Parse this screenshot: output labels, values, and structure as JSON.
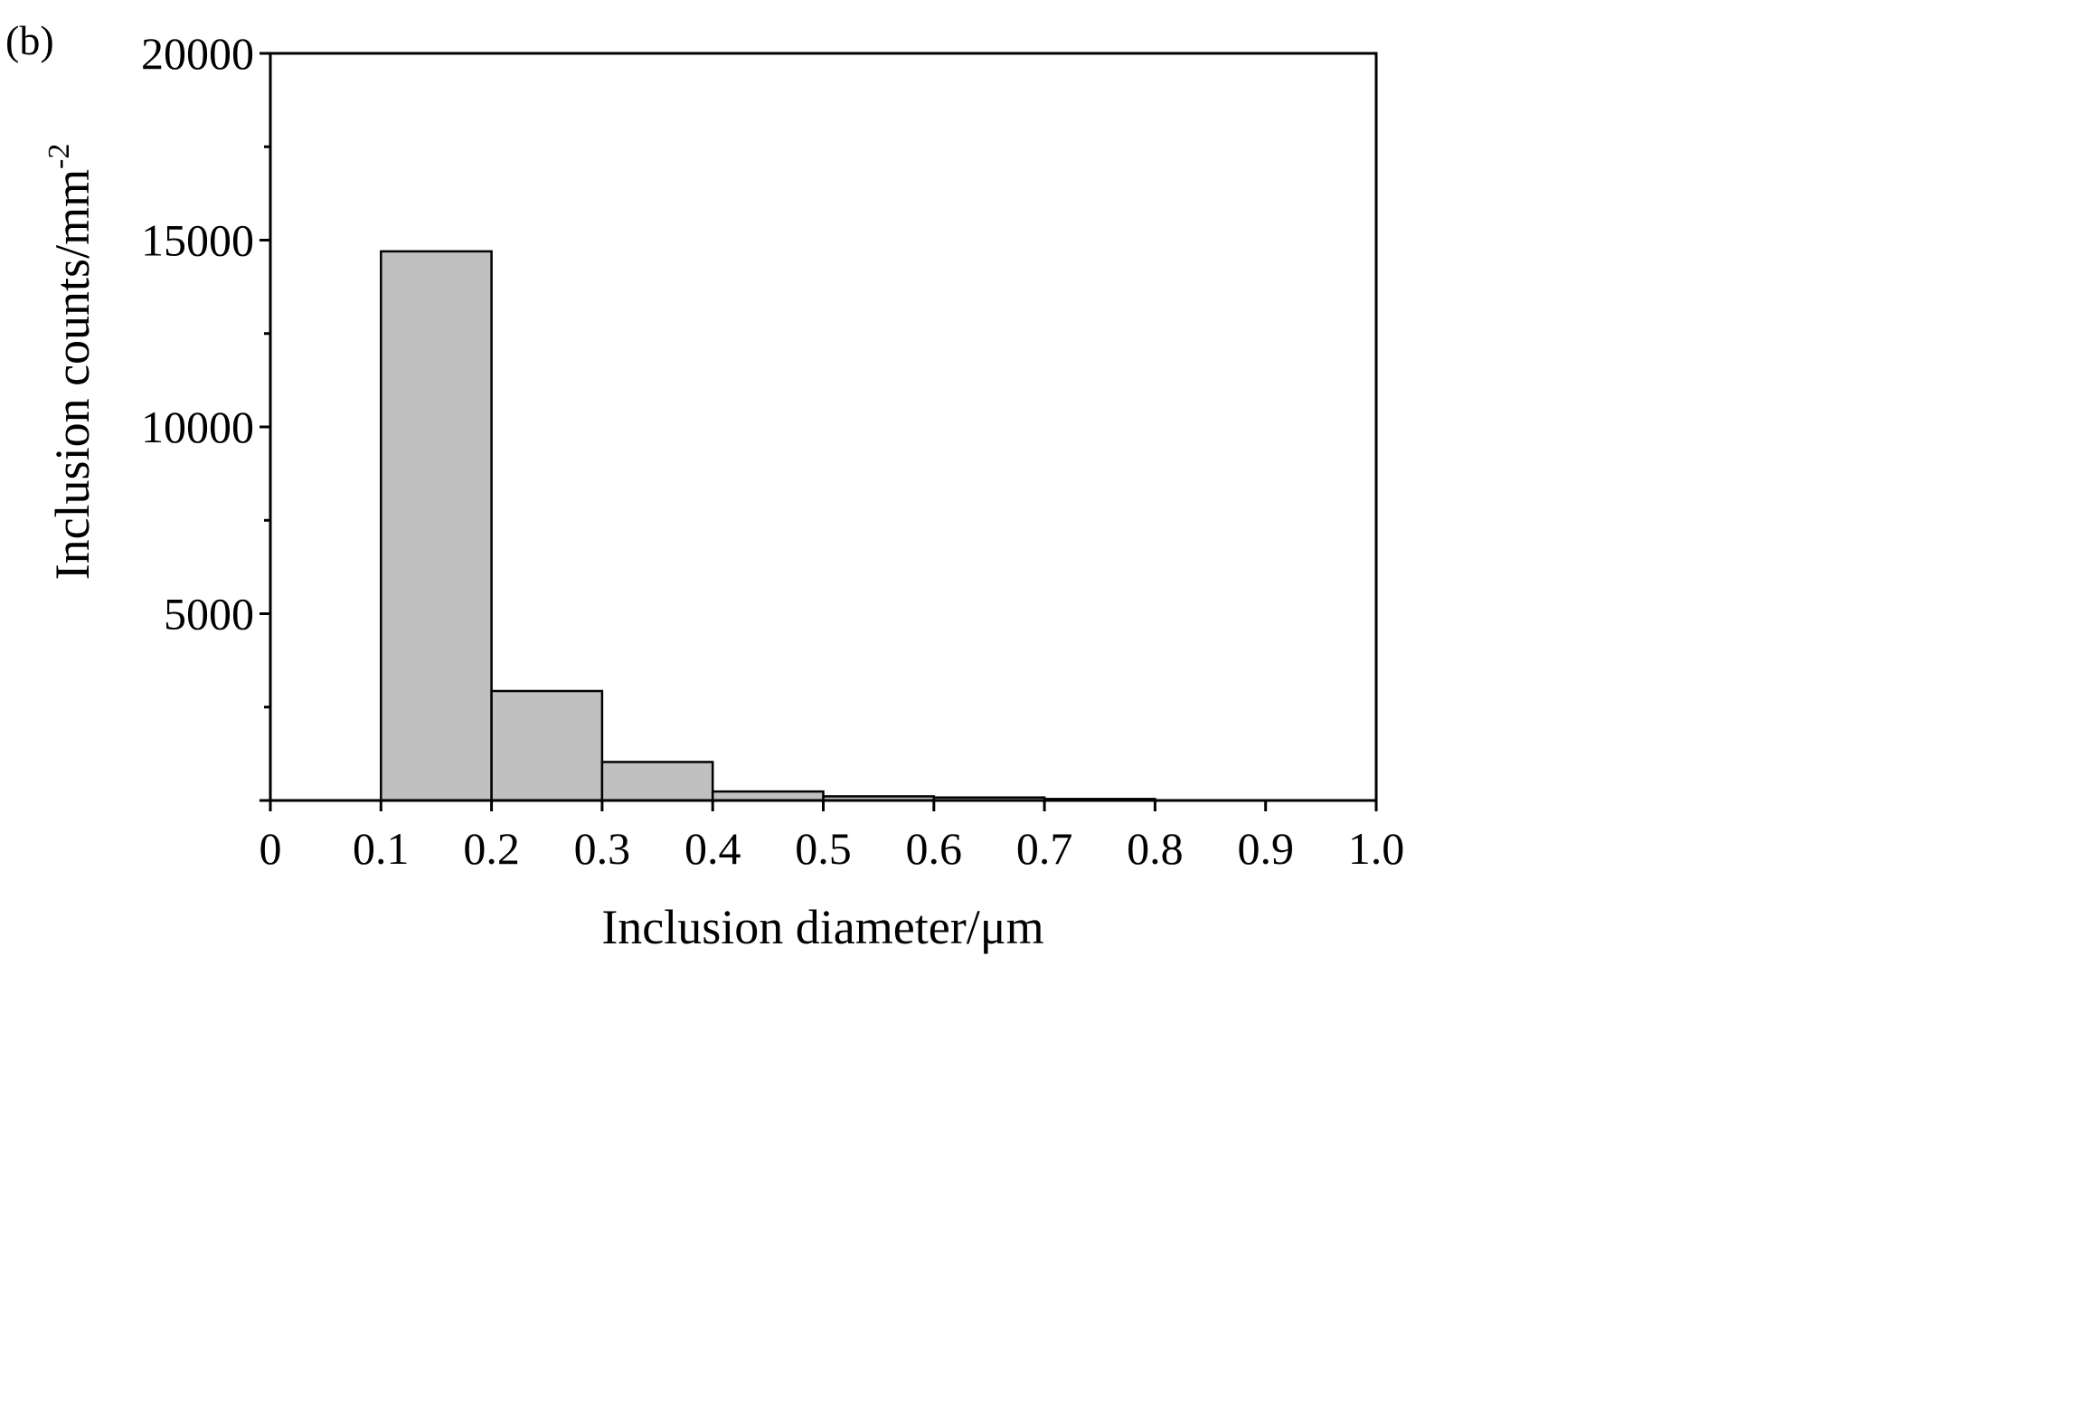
{
  "chart_data": {
    "type": "bar",
    "panel_label": "(b)",
    "xlabel": "Inclusion diameter/μm",
    "ylabel_base": "Inclusion counts/mm",
    "ylabel_sup": "-2",
    "xlim": [
      0,
      1.0
    ],
    "ylim": [
      0,
      20000
    ],
    "x_tick_labels": [
      "0",
      "0.1",
      "0.2",
      "0.3",
      "0.4",
      "0.5",
      "0.6",
      "0.7",
      "0.8",
      "0.9",
      "1.0"
    ],
    "y_tick_labels": [
      "5000",
      "10000",
      "15000",
      "20000"
    ],
    "bins": [
      {
        "from": 0.1,
        "to": 0.2,
        "value": 14700
      },
      {
        "from": 0.2,
        "to": 0.3,
        "value": 2930
      },
      {
        "from": 0.3,
        "to": 0.4,
        "value": 1030
      },
      {
        "from": 0.4,
        "to": 0.5,
        "value": 240
      },
      {
        "from": 0.5,
        "to": 0.6,
        "value": 110
      },
      {
        "from": 0.6,
        "to": 0.7,
        "value": 80
      },
      {
        "from": 0.7,
        "to": 0.8,
        "value": 40
      }
    ],
    "bar_fill": "#c0c0c0",
    "bar_stroke": "#000000",
    "grid": false,
    "legend": "none"
  }
}
